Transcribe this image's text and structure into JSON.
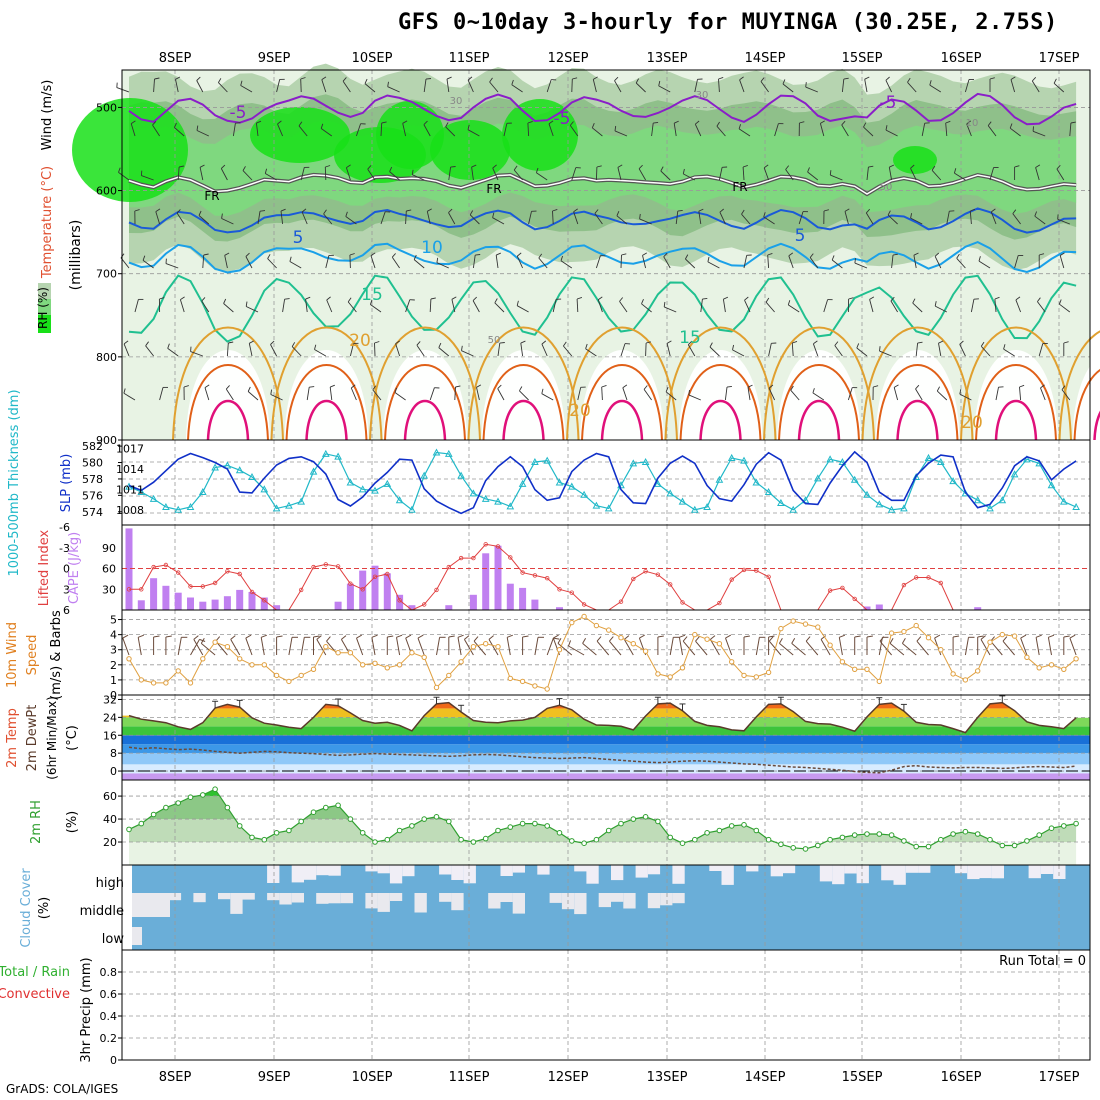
{
  "title": "GFS 0~10day 3-hourly for MUYINGA (30.25E, 2.75S)",
  "credit": "GrADS: COLA/IGES",
  "colors": {
    "rh_light": "#e8f3e4",
    "rh_mid": "#b6d4b0",
    "rh_dark": "#8fc08a",
    "rh_green": "#7fd87f",
    "rh_bright": "#18e018",
    "temp_neg5": "#8a1ec8",
    "temp_fr": "#000000",
    "temp_5": "#1a5ad8",
    "temp_10": "#1aa0e8",
    "temp_15": "#20c090",
    "temp_20": "#e0a030",
    "temp_25": "#e06018",
    "temp_30": "#e0107a",
    "thickness": "#1030c8",
    "slp": "#20b8c8",
    "cape": "#c080f0",
    "lifted": "#e04040",
    "wind": "#e0a040",
    "barb": "#6a4a3a",
    "rh2m": "#30a030",
    "cloud": "#6aaed8",
    "cloud_bg": "#f0eef6"
  },
  "chart_data": {
    "type": "meteogram",
    "x_dates": [
      "8SEP",
      "9SEP",
      "10SEP",
      "11SEP",
      "12SEP",
      "13SEP",
      "14SEP",
      "15SEP",
      "16SEP",
      "17SEP"
    ],
    "time_step_hours": 3,
    "n_steps": 78,
    "panels": [
      {
        "name": "cross-section",
        "ylabel_parts": [
          "RH (%)",
          "Temperature (°C)",
          "Wind (m/s)"
        ],
        "ylabel_sub": "(millibars)",
        "yticks": [
          500,
          600,
          700,
          800,
          900
        ],
        "ylim": [
          455,
          900
        ],
        "freezing_level_mb": [
          588,
          590,
          592,
          586,
          584,
          590,
          598,
          604,
          600,
          594,
          588,
          584,
          588,
          592,
          588,
          584,
          582,
          582,
          586,
          588,
          584,
          586,
          590,
          588,
          586,
          586,
          590,
          594,
          592,
          590,
          586,
          584,
          588,
          592,
          590,
          588,
          586,
          588,
          592,
          590,
          588,
          586,
          586,
          588,
          592,
          592,
          588,
          586,
          586,
          588,
          592,
          590,
          588,
          586,
          588,
          590,
          594,
          592,
          588,
          592,
          604,
          598,
          592,
          588,
          588,
          592,
          590,
          588,
          586,
          584,
          588,
          592,
          596,
          596,
          594,
          592,
          592,
          596
        ],
        "contour_labels": [
          "-5",
          "-5",
          "-5",
          "FR",
          "FR",
          "FR",
          "5",
          "5",
          "10",
          "15",
          "15",
          "20",
          "20",
          "20",
          "30",
          "30",
          "50",
          "50",
          "10"
        ]
      },
      {
        "name": "thickness-slp",
        "ylabel_left": "1000-500mb Thickness (dm)",
        "ylabel_right": "SLP (mb)",
        "yticks_left": [
          574,
          576,
          578,
          580,
          582
        ],
        "yticks_right": [
          1008,
          1011,
          1014,
          1017
        ],
        "thickness_dm": [
          577.2,
          576.6,
          577.6,
          579.0,
          580.4,
          581.1,
          580.6,
          580.0,
          579.2,
          576.4,
          576.3,
          578.1,
          579.7,
          580.5,
          580.7,
          580.1,
          578.6,
          575.5,
          574.7,
          575.8,
          577.5,
          578.8,
          580.4,
          580.3,
          576.8,
          575.3,
          574.5,
          573.8,
          574.5,
          577.8,
          579.5,
          580.7,
          579.5,
          576.7,
          575.4,
          575.7,
          578.9,
          580.3,
          581.1,
          580.7,
          576.7,
          575.1,
          575.0,
          578.1,
          579.9,
          580.8,
          579.9,
          577.2,
          575.6,
          575.3,
          577.3,
          579.8,
          581.2,
          580.3,
          576.6,
          575.0,
          574.9,
          577.5,
          579.6,
          581.3,
          580.0,
          576.4,
          575.4,
          575.4,
          578.4,
          579.9,
          580.9,
          580.7,
          576.4,
          574.5,
          574.9,
          576.9,
          579.6,
          580.7,
          580.2,
          577.9,
          579.2,
          580.2
        ],
        "slp_mb": [
          1011.4,
          1010.6,
          1009.6,
          1008.4,
          1008.0,
          1008.4,
          1010.6,
          1014.2,
          1014.5,
          1013.8,
          1012.8,
          1011.0,
          1008.2,
          1008.6,
          1009.2,
          1013.6,
          1016.2,
          1015.8,
          1012.0,
          1011.0,
          1010.8,
          1011.8,
          1009.4,
          1008.0,
          1013.0,
          1016.4,
          1016.2,
          1013.0,
          1010.4,
          1009.6,
          1009.2,
          1008.5,
          1011.8,
          1015.0,
          1015.2,
          1012.0,
          1011.4,
          1010.2,
          1008.6,
          1008.2,
          1011.6,
          1014.8,
          1015.0,
          1011.8,
          1010.4,
          1009.2,
          1008.0,
          1008.4,
          1012.4,
          1015.6,
          1015.2,
          1012.0,
          1010.6,
          1009.0,
          1008.0,
          1009.4,
          1012.6,
          1015.4,
          1015.0,
          1012.4,
          1010.2,
          1008.8,
          1008.0,
          1008.2,
          1012.8,
          1015.6,
          1015.0,
          1012.2,
          1010.4,
          1009.4,
          1008.2,
          1009.4,
          1013.2,
          1015.4,
          1014.8,
          1011.6,
          1009.2,
          1008.4
        ]
      },
      {
        "name": "cape-lifted",
        "ylabel_left": "Lifted Index",
        "ylabel_right": "CAPE (J/kg)",
        "yticks_left": [
          "-6",
          "-3",
          "0",
          "3",
          "6"
        ],
        "yticks_right": [
          30,
          60,
          90
        ],
        "cape": [
          118,
          14,
          46,
          35,
          25,
          18,
          12,
          15,
          20,
          29,
          26,
          18,
          7,
          0,
          0,
          0,
          0,
          12,
          38,
          57,
          64,
          53,
          22,
          7,
          0,
          0,
          7,
          0,
          22,
          82,
          93,
          38,
          32,
          15,
          0,
          4,
          0,
          0,
          0,
          0,
          0,
          0,
          0,
          0,
          0,
          0,
          0,
          0,
          0,
          0,
          0,
          0,
          0,
          0,
          0,
          0,
          0,
          0,
          0,
          0,
          5,
          8,
          0,
          0,
          0,
          0,
          0,
          0,
          0,
          4,
          0,
          0,
          0,
          0,
          0,
          0,
          0,
          0
        ],
        "lifted_index": [
          3.0,
          3.0,
          -0.2,
          -0.5,
          0.6,
          2.6,
          2.6,
          2.1,
          0.4,
          0.8,
          3.4,
          4.6,
          6.0,
          6.0,
          3.1,
          -0.2,
          -0.6,
          -0.3,
          2.2,
          3.0,
          1.2,
          0.8,
          4.6,
          6.0,
          5.2,
          3.1,
          -0.2,
          -1.5,
          -1.5,
          -3.5,
          -3.2,
          -1.6,
          0.6,
          1.0,
          1.4,
          3.0,
          3.5,
          5.2,
          6.0,
          6.0,
          4.8,
          1.5,
          0.4,
          0.9,
          2.3,
          4.9,
          6.0,
          6.0,
          5.0,
          1.6,
          0.2,
          0.3,
          1.2,
          6.0,
          6.0,
          6.0,
          6.0,
          3.2,
          2.8,
          4.4,
          6.0,
          6.0,
          6.0,
          2.4,
          1.3,
          1.3,
          2.1,
          6.0,
          6.0,
          6.0,
          6.0,
          6.0,
          6.0,
          6.0,
          6.0,
          6.0,
          6.0,
          6.0
        ],
        "reference_line": 0
      },
      {
        "name": "wind",
        "ylabel": "10m Wind Speed (m/s) & Barbs",
        "yticks": [
          0,
          1,
          2,
          3,
          4,
          5
        ],
        "ylim": [
          0,
          5.5
        ],
        "speed_ms": [
          2.4,
          1.0,
          0.8,
          0.8,
          1.6,
          0.8,
          2.4,
          3.5,
          3.2,
          2.4,
          2.0,
          2.0,
          1.3,
          0.9,
          1.3,
          1.7,
          3.2,
          2.8,
          2.8,
          2.0,
          2.1,
          1.8,
          2.0,
          2.8,
          2.5,
          0.5,
          1.3,
          2.2,
          3.2,
          3.4,
          3.2,
          1.1,
          0.9,
          0.6,
          0.4,
          3.0,
          4.8,
          5.2,
          4.6,
          4.3,
          3.8,
          3.4,
          2.9,
          1.4,
          1.2,
          1.8,
          4.0,
          3.7,
          3.4,
          2.2,
          1.3,
          1.2,
          1.5,
          4.4,
          4.9,
          4.7,
          4.5,
          3.3,
          2.2,
          1.7,
          1.7,
          0.9,
          4.1,
          4.2,
          4.6,
          3.8,
          3.0,
          1.4,
          1.0,
          1.6,
          3.5,
          4.0,
          3.9,
          2.5,
          1.8,
          2.0,
          1.7,
          2.4
        ],
        "barb_dir_deg": [
          250,
          260,
          270,
          270,
          280,
          300,
          240,
          220,
          230,
          240,
          250,
          260,
          270,
          280,
          280,
          270,
          240,
          230,
          240,
          250,
          260,
          270,
          260,
          250,
          250,
          280,
          270,
          260,
          240,
          230,
          240,
          260,
          270,
          280,
          290,
          250,
          220,
          210,
          220,
          230,
          230,
          240,
          250,
          270,
          280,
          260,
          230,
          230,
          240,
          250,
          270,
          280,
          270,
          230,
          220,
          220,
          230,
          240,
          260,
          270,
          270,
          280,
          230,
          220,
          220,
          230,
          250,
          270,
          280,
          270,
          240,
          230,
          230,
          250,
          260,
          260,
          270,
          250
        ]
      },
      {
        "name": "temperature",
        "ylabel": "2m Temp 2m DewPt (6hr Min/Max) (°C)",
        "yticks": [
          0,
          8,
          16,
          24,
          32
        ],
        "ylim": [
          -4,
          34
        ],
        "temp_c": [
          24.8,
          23.2,
          22.4,
          21.6,
          19.8,
          18.6,
          21.6,
          28.2,
          29.8,
          28.6,
          23.8,
          21.4,
          20.6,
          19.6,
          19.0,
          24.0,
          29.8,
          29.2,
          26.0,
          22.6,
          21.4,
          21.8,
          20.4,
          18.0,
          24.8,
          30.0,
          30.6,
          26.4,
          22.6,
          21.8,
          21.6,
          22.4,
          22.8,
          24.0,
          28.0,
          29.4,
          27.4,
          23.2,
          20.6,
          20.4,
          20.0,
          18.4,
          24.6,
          30.0,
          30.4,
          27.0,
          22.2,
          20.4,
          19.8,
          18.4,
          18.0,
          24.2,
          29.8,
          30.0,
          26.6,
          22.2,
          21.2,
          21.0,
          19.6,
          17.8,
          24.2,
          29.8,
          30.4,
          26.8,
          21.8,
          20.8,
          20.6,
          19.0,
          17.2,
          24.0,
          30.0,
          30.6,
          27.0,
          22.0,
          20.4,
          19.8,
          19.0,
          23.8
        ],
        "dewpoint_c": [
          10.6,
          10.0,
          10.4,
          10.0,
          9.6,
          9.8,
          9.4,
          8.8,
          8.4,
          8.0,
          8.4,
          8.8,
          8.6,
          8.2,
          8.0,
          7.8,
          7.4,
          7.0,
          7.2,
          7.6,
          7.8,
          7.6,
          7.4,
          7.2,
          7.0,
          6.8,
          6.6,
          6.8,
          7.2,
          7.4,
          7.2,
          6.8,
          6.4,
          6.0,
          5.8,
          5.6,
          5.8,
          6.0,
          5.6,
          5.2,
          4.8,
          4.4,
          4.0,
          3.8,
          4.0,
          4.4,
          4.6,
          4.4,
          4.0,
          3.6,
          3.2,
          3.0,
          2.6,
          2.2,
          1.8,
          1.6,
          1.2,
          0.8,
          0.4,
          -0.2,
          -0.6,
          -0.8,
          0.4,
          2.0,
          2.4,
          1.8,
          1.6,
          1.4,
          1.6,
          1.6,
          1.4,
          1.2,
          1.4,
          1.8,
          2.0,
          1.8,
          1.6,
          2.2
        ],
        "reference_line": 0
      },
      {
        "name": "rh2m",
        "ylabel": "2m RH (%)",
        "yticks": [
          20,
          40,
          60
        ],
        "ylim": [
          0,
          74
        ],
        "rh_percent": [
          31,
          36,
          44,
          50,
          54,
          59,
          61,
          66,
          50,
          34,
          24,
          22,
          28,
          30,
          38,
          46,
          50,
          52,
          40,
          28,
          20,
          22,
          30,
          34,
          40,
          42,
          38,
          22,
          20,
          23,
          30,
          33,
          36,
          36,
          34,
          28,
          21,
          19,
          22,
          30,
          36,
          40,
          42,
          38,
          24,
          19,
          22,
          28,
          30,
          34,
          35,
          30,
          22,
          18,
          15,
          14,
          17,
          22,
          24,
          26,
          27,
          27,
          26,
          21,
          16,
          16,
          22,
          27,
          29,
          27,
          22,
          17,
          17,
          21,
          26,
          32,
          34,
          36
        ]
      },
      {
        "name": "cloud",
        "ylabel": "Cloud Cover (%)",
        "levels": [
          "high",
          "middle",
          "low"
        ]
      },
      {
        "name": "precip",
        "ylabel_parts": [
          "Total / Rain",
          "Convective",
          "3hr Precip (mm)"
        ],
        "yticks": [
          0,
          0.2,
          0.4,
          0.6,
          0.8
        ],
        "ylim": [
          0,
          1.0
        ],
        "run_total_text": "Run Total = 0"
      }
    ]
  }
}
